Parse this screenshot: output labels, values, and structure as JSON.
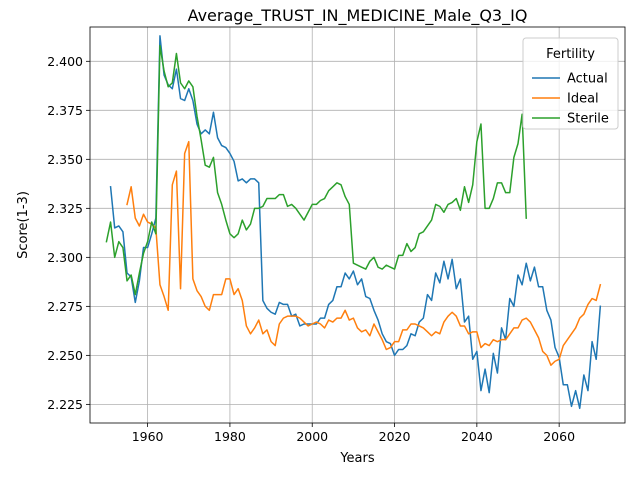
{
  "chart_data": {
    "type": "line",
    "title": "Average_TRUST_IN_MEDICINE_Male_Q3_IQ",
    "xlabel": "Years",
    "ylabel": "Score(1-3)",
    "xlim": [
      1946,
      2076
    ],
    "ylim": [
      2.2155,
      2.4175
    ],
    "xticks": [
      1960,
      1980,
      2000,
      2020,
      2040,
      2060
    ],
    "yticks": [
      2.225,
      2.25,
      2.275,
      2.3,
      2.325,
      2.35,
      2.375,
      2.4
    ],
    "ytick_labels": [
      "2.225",
      "2.250",
      "2.275",
      "2.300",
      "2.325",
      "2.350",
      "2.375",
      "2.400"
    ],
    "grid": true,
    "legend": {
      "title": "Fertility",
      "placement": "top-right"
    },
    "series": [
      {
        "name": "Actual",
        "color": "#1f77b4",
        "x": [
          1951,
          1952,
          1953,
          1954,
          1955,
          1956,
          1957,
          1958,
          1959,
          1960,
          1961,
          1962,
          1963,
          1964,
          1965,
          1966,
          1967,
          1968,
          1969,
          1970,
          1971,
          1972,
          1973,
          1974,
          1975,
          1976,
          1977,
          1978,
          1979,
          1980,
          1981,
          1982,
          1983,
          1984,
          1985,
          1986,
          1987,
          1988,
          1989,
          1990,
          1991,
          1992,
          1993,
          1994,
          1995,
          1996,
          1997,
          1998,
          1999,
          2000,
          2001,
          2002,
          2003,
          2004,
          2005,
          2006,
          2007,
          2008,
          2009,
          2010,
          2011,
          2012,
          2013,
          2014,
          2015,
          2016,
          2017,
          2018,
          2019,
          2020,
          2021,
          2022,
          2023,
          2024,
          2025,
          2026,
          2027,
          2028,
          2029,
          2030,
          2031,
          2032,
          2033,
          2034,
          2035,
          2036,
          2037,
          2038,
          2039,
          2040,
          2041,
          2042,
          2043,
          2044,
          2045,
          2046,
          2047,
          2048,
          2049,
          2050,
          2051,
          2052,
          2053,
          2054,
          2055,
          2056,
          2057,
          2058,
          2059,
          2060,
          2061,
          2062,
          2063,
          2064,
          2065,
          2066,
          2067,
          2068,
          2069,
          2070
        ],
        "y": [
          2.336,
          2.315,
          2.316,
          2.313,
          2.292,
          2.29,
          2.277,
          2.288,
          2.305,
          2.305,
          2.312,
          2.32,
          2.413,
          2.393,
          2.388,
          2.386,
          2.396,
          2.381,
          2.38,
          2.386,
          2.38,
          2.368,
          2.363,
          2.365,
          2.363,
          2.374,
          2.361,
          2.357,
          2.356,
          2.353,
          2.349,
          2.339,
          2.34,
          2.338,
          2.34,
          2.34,
          2.338,
          2.278,
          2.274,
          2.272,
          2.271,
          2.277,
          2.276,
          2.276,
          2.27,
          2.271,
          2.265,
          2.266,
          2.266,
          2.266,
          2.266,
          2.269,
          2.269,
          2.276,
          2.278,
          2.285,
          2.285,
          2.292,
          2.289,
          2.293,
          2.286,
          2.289,
          2.28,
          2.279,
          2.273,
          2.268,
          2.261,
          2.257,
          2.256,
          2.25,
          2.253,
          2.253,
          2.255,
          2.261,
          2.26,
          2.267,
          2.269,
          2.281,
          2.278,
          2.292,
          2.287,
          2.298,
          2.289,
          2.299,
          2.284,
          2.289,
          2.267,
          2.27,
          2.248,
          2.252,
          2.232,
          2.243,
          2.231,
          2.251,
          2.241,
          2.264,
          2.258,
          2.279,
          2.275,
          2.291,
          2.286,
          2.297,
          2.288,
          2.295,
          2.285,
          2.285,
          2.273,
          2.268,
          2.254,
          2.249,
          2.235,
          2.235,
          2.224,
          2.232,
          2.223,
          2.24,
          2.232,
          2.257,
          2.248,
          2.275
        ]
      },
      {
        "name": "Ideal",
        "color": "#ff7f0e",
        "x": [
          1955,
          1956,
          1957,
          1958,
          1959,
          1960,
          1961,
          1962,
          1963,
          1964,
          1965,
          1966,
          1967,
          1968,
          1969,
          1970,
          1971,
          1972,
          1973,
          1974,
          1975,
          1976,
          1977,
          1978,
          1979,
          1980,
          1981,
          1982,
          1983,
          1984,
          1985,
          1986,
          1987,
          1988,
          1989,
          1990,
          1991,
          1992,
          1993,
          1994,
          1995,
          1996,
          1997,
          1998,
          1999,
          2000,
          2001,
          2002,
          2003,
          2004,
          2005,
          2006,
          2007,
          2008,
          2009,
          2010,
          2011,
          2012,
          2013,
          2014,
          2015,
          2016,
          2017,
          2018,
          2019,
          2020,
          2021,
          2022,
          2023,
          2024,
          2025,
          2026,
          2027,
          2028,
          2029,
          2030,
          2031,
          2032,
          2033,
          2034,
          2035,
          2036,
          2037,
          2038,
          2039,
          2040,
          2041,
          2042,
          2043,
          2044,
          2045,
          2046,
          2047,
          2048,
          2049,
          2050,
          2051,
          2052,
          2053,
          2054,
          2055,
          2056,
          2057,
          2058,
          2059,
          2060,
          2061,
          2062,
          2063,
          2064,
          2065,
          2066,
          2067,
          2068,
          2069,
          2070
        ],
        "y": [
          2.327,
          2.336,
          2.32,
          2.316,
          2.322,
          2.318,
          2.317,
          2.315,
          2.286,
          2.28,
          2.273,
          2.337,
          2.344,
          2.284,
          2.353,
          2.359,
          2.289,
          2.283,
          2.28,
          2.275,
          2.273,
          2.281,
          2.281,
          2.281,
          2.289,
          2.289,
          2.281,
          2.284,
          2.278,
          2.265,
          2.261,
          2.264,
          2.268,
          2.261,
          2.263,
          2.257,
          2.255,
          2.266,
          2.269,
          2.27,
          2.27,
          2.27,
          2.269,
          2.267,
          2.265,
          2.266,
          2.267,
          2.266,
          2.264,
          2.268,
          2.267,
          2.269,
          2.269,
          2.273,
          2.268,
          2.269,
          2.264,
          2.262,
          2.263,
          2.26,
          2.266,
          2.262,
          2.258,
          2.253,
          2.254,
          2.257,
          2.257,
          2.263,
          2.263,
          2.266,
          2.266,
          2.265,
          2.264,
          2.262,
          2.26,
          2.262,
          2.261,
          2.267,
          2.27,
          2.272,
          2.27,
          2.265,
          2.265,
          2.261,
          2.262,
          2.262,
          2.254,
          2.256,
          2.255,
          2.258,
          2.257,
          2.258,
          2.258,
          2.261,
          2.264,
          2.264,
          2.268,
          2.269,
          2.267,
          2.263,
          2.259,
          2.252,
          2.25,
          2.245,
          2.247,
          2.248,
          2.255,
          2.258,
          2.261,
          2.264,
          2.269,
          2.271,
          2.276,
          2.279,
          2.278,
          2.286
        ]
      },
      {
        "name": "Sterile",
        "color": "#2ca02c",
        "x": [
          1950,
          1951,
          1952,
          1953,
          1954,
          1955,
          1956,
          1957,
          1958,
          1959,
          1960,
          1961,
          1962,
          1963,
          1964,
          1965,
          1966,
          1967,
          1968,
          1969,
          1970,
          1971,
          1972,
          1973,
          1974,
          1975,
          1976,
          1977,
          1978,
          1979,
          1980,
          1981,
          1982,
          1983,
          1984,
          1985,
          1986,
          1987,
          1988,
          1989,
          1990,
          1991,
          1992,
          1993,
          1994,
          1995,
          1996,
          1997,
          1998,
          1999,
          2000,
          2001,
          2002,
          2003,
          2004,
          2005,
          2006,
          2007,
          2008,
          2009,
          2010,
          2011,
          2012,
          2013,
          2014,
          2015,
          2016,
          2017,
          2018,
          2019,
          2020,
          2021,
          2022,
          2023,
          2024,
          2025,
          2026,
          2027,
          2028,
          2029,
          2030,
          2031,
          2032,
          2033,
          2034,
          2035,
          2036,
          2037,
          2038,
          2039,
          2040,
          2041,
          2042,
          2043,
          2044,
          2045,
          2046,
          2047,
          2048,
          2049,
          2050,
          2051,
          2052
        ],
        "y": [
          2.308,
          2.318,
          2.3,
          2.308,
          2.305,
          2.288,
          2.291,
          2.281,
          2.292,
          2.302,
          2.308,
          2.318,
          2.312,
          2.408,
          2.395,
          2.387,
          2.389,
          2.404,
          2.389,
          2.386,
          2.39,
          2.387,
          2.372,
          2.36,
          2.347,
          2.346,
          2.351,
          2.333,
          2.327,
          2.319,
          2.312,
          2.31,
          2.312,
          2.319,
          2.314,
          2.317,
          2.325,
          2.325,
          2.326,
          2.33,
          2.33,
          2.33,
          2.332,
          2.332,
          2.326,
          2.327,
          2.325,
          2.322,
          2.319,
          2.323,
          2.327,
          2.327,
          2.329,
          2.33,
          2.334,
          2.336,
          2.338,
          2.337,
          2.331,
          2.327,
          2.297,
          2.296,
          2.295,
          2.294,
          2.298,
          2.3,
          2.295,
          2.294,
          2.296,
          2.295,
          2.294,
          2.301,
          2.301,
          2.307,
          2.303,
          2.305,
          2.312,
          2.313,
          2.316,
          2.319,
          2.327,
          2.326,
          2.323,
          2.327,
          2.328,
          2.33,
          2.324,
          2.336,
          2.328,
          2.337,
          2.359,
          2.368,
          2.325,
          2.325,
          2.33,
          2.338,
          2.338,
          2.333,
          2.333,
          2.351,
          2.358,
          2.373,
          2.32
        ]
      }
    ]
  }
}
